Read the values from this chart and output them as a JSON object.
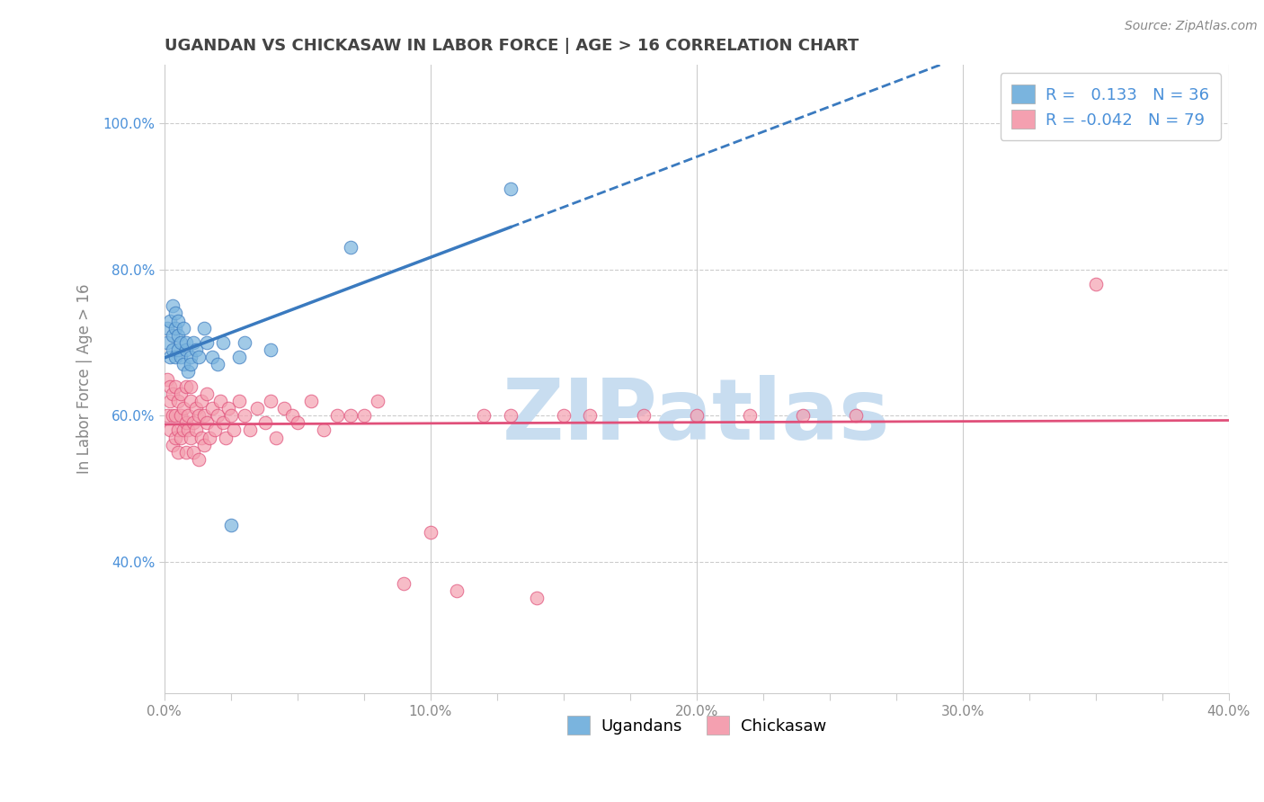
{
  "title": "UGANDAN VS CHICKASAW IN LABOR FORCE | AGE > 16 CORRELATION CHART",
  "source_text": "Source: ZipAtlas.com",
  "ylabel": "In Labor Force | Age > 16",
  "xlim": [
    0.0,
    0.4
  ],
  "ylim": [
    0.22,
    1.08
  ],
  "xtick_labels": [
    "0.0%",
    "",
    "",
    "",
    "10.0%",
    "",
    "",
    "",
    "20.0%",
    "",
    "",
    "",
    "30.0%",
    "",
    "",
    "",
    "40.0%"
  ],
  "xtick_values": [
    0.0,
    0.025,
    0.05,
    0.075,
    0.1,
    0.125,
    0.15,
    0.175,
    0.2,
    0.225,
    0.25,
    0.275,
    0.3,
    0.325,
    0.35,
    0.375,
    0.4
  ],
  "ytick_labels": [
    "40.0%",
    "60.0%",
    "80.0%",
    "100.0%"
  ],
  "ytick_values": [
    0.4,
    0.6,
    0.8,
    1.0
  ],
  "ugandan_color": "#7ab4de",
  "chickasaw_color": "#f4a0b0",
  "ugandan_R": 0.133,
  "ugandan_N": 36,
  "chickasaw_R": -0.042,
  "chickasaw_N": 79,
  "ugandan_trend_color": "#3a7abf",
  "chickasaw_trend_color": "#e0507a",
  "watermark": "ZIPatlas",
  "watermark_color": "#c8ddf0",
  "legend_label_ugandan": "Ugandans",
  "legend_label_chickasaw": "Chickasaw",
  "ugandan_x": [
    0.001,
    0.001,
    0.002,
    0.002,
    0.003,
    0.003,
    0.003,
    0.004,
    0.004,
    0.004,
    0.005,
    0.005,
    0.005,
    0.006,
    0.006,
    0.007,
    0.007,
    0.008,
    0.008,
    0.009,
    0.01,
    0.01,
    0.011,
    0.012,
    0.013,
    0.015,
    0.016,
    0.018,
    0.02,
    0.022,
    0.025,
    0.028,
    0.03,
    0.04,
    0.07,
    0.13
  ],
  "ugandan_y": [
    0.72,
    0.7,
    0.73,
    0.68,
    0.75,
    0.71,
    0.69,
    0.74,
    0.68,
    0.72,
    0.71,
    0.73,
    0.69,
    0.7,
    0.68,
    0.72,
    0.67,
    0.69,
    0.7,
    0.66,
    0.68,
    0.67,
    0.7,
    0.69,
    0.68,
    0.72,
    0.7,
    0.68,
    0.67,
    0.7,
    0.45,
    0.68,
    0.7,
    0.69,
    0.83,
    0.91
  ],
  "chickasaw_x": [
    0.001,
    0.001,
    0.002,
    0.002,
    0.002,
    0.003,
    0.003,
    0.003,
    0.004,
    0.004,
    0.004,
    0.005,
    0.005,
    0.005,
    0.006,
    0.006,
    0.006,
    0.007,
    0.007,
    0.008,
    0.008,
    0.008,
    0.009,
    0.009,
    0.01,
    0.01,
    0.01,
    0.011,
    0.011,
    0.012,
    0.012,
    0.013,
    0.013,
    0.014,
    0.014,
    0.015,
    0.015,
    0.016,
    0.016,
    0.017,
    0.018,
    0.019,
    0.02,
    0.021,
    0.022,
    0.023,
    0.024,
    0.025,
    0.026,
    0.028,
    0.03,
    0.032,
    0.035,
    0.038,
    0.04,
    0.042,
    0.045,
    0.048,
    0.05,
    0.055,
    0.06,
    0.065,
    0.07,
    0.075,
    0.08,
    0.09,
    0.1,
    0.11,
    0.12,
    0.13,
    0.14,
    0.15,
    0.16,
    0.18,
    0.2,
    0.22,
    0.24,
    0.26,
    0.35
  ],
  "chickasaw_y": [
    0.6,
    0.65,
    0.62,
    0.58,
    0.64,
    0.6,
    0.56,
    0.63,
    0.6,
    0.57,
    0.64,
    0.58,
    0.62,
    0.55,
    0.6,
    0.63,
    0.57,
    0.58,
    0.61,
    0.64,
    0.59,
    0.55,
    0.6,
    0.58,
    0.62,
    0.57,
    0.64,
    0.59,
    0.55,
    0.61,
    0.58,
    0.6,
    0.54,
    0.62,
    0.57,
    0.6,
    0.56,
    0.59,
    0.63,
    0.57,
    0.61,
    0.58,
    0.6,
    0.62,
    0.59,
    0.57,
    0.61,
    0.6,
    0.58,
    0.62,
    0.6,
    0.58,
    0.61,
    0.59,
    0.62,
    0.57,
    0.61,
    0.6,
    0.59,
    0.62,
    0.58,
    0.6,
    0.6,
    0.6,
    0.62,
    0.37,
    0.44,
    0.36,
    0.6,
    0.6,
    0.35,
    0.6,
    0.6,
    0.6,
    0.6,
    0.6,
    0.6,
    0.6,
    0.78
  ],
  "bg_color": "#ffffff",
  "grid_color": "#cccccc",
  "axis_line_color": "#cccccc",
  "title_color": "#444444",
  "tick_color": "#888888"
}
